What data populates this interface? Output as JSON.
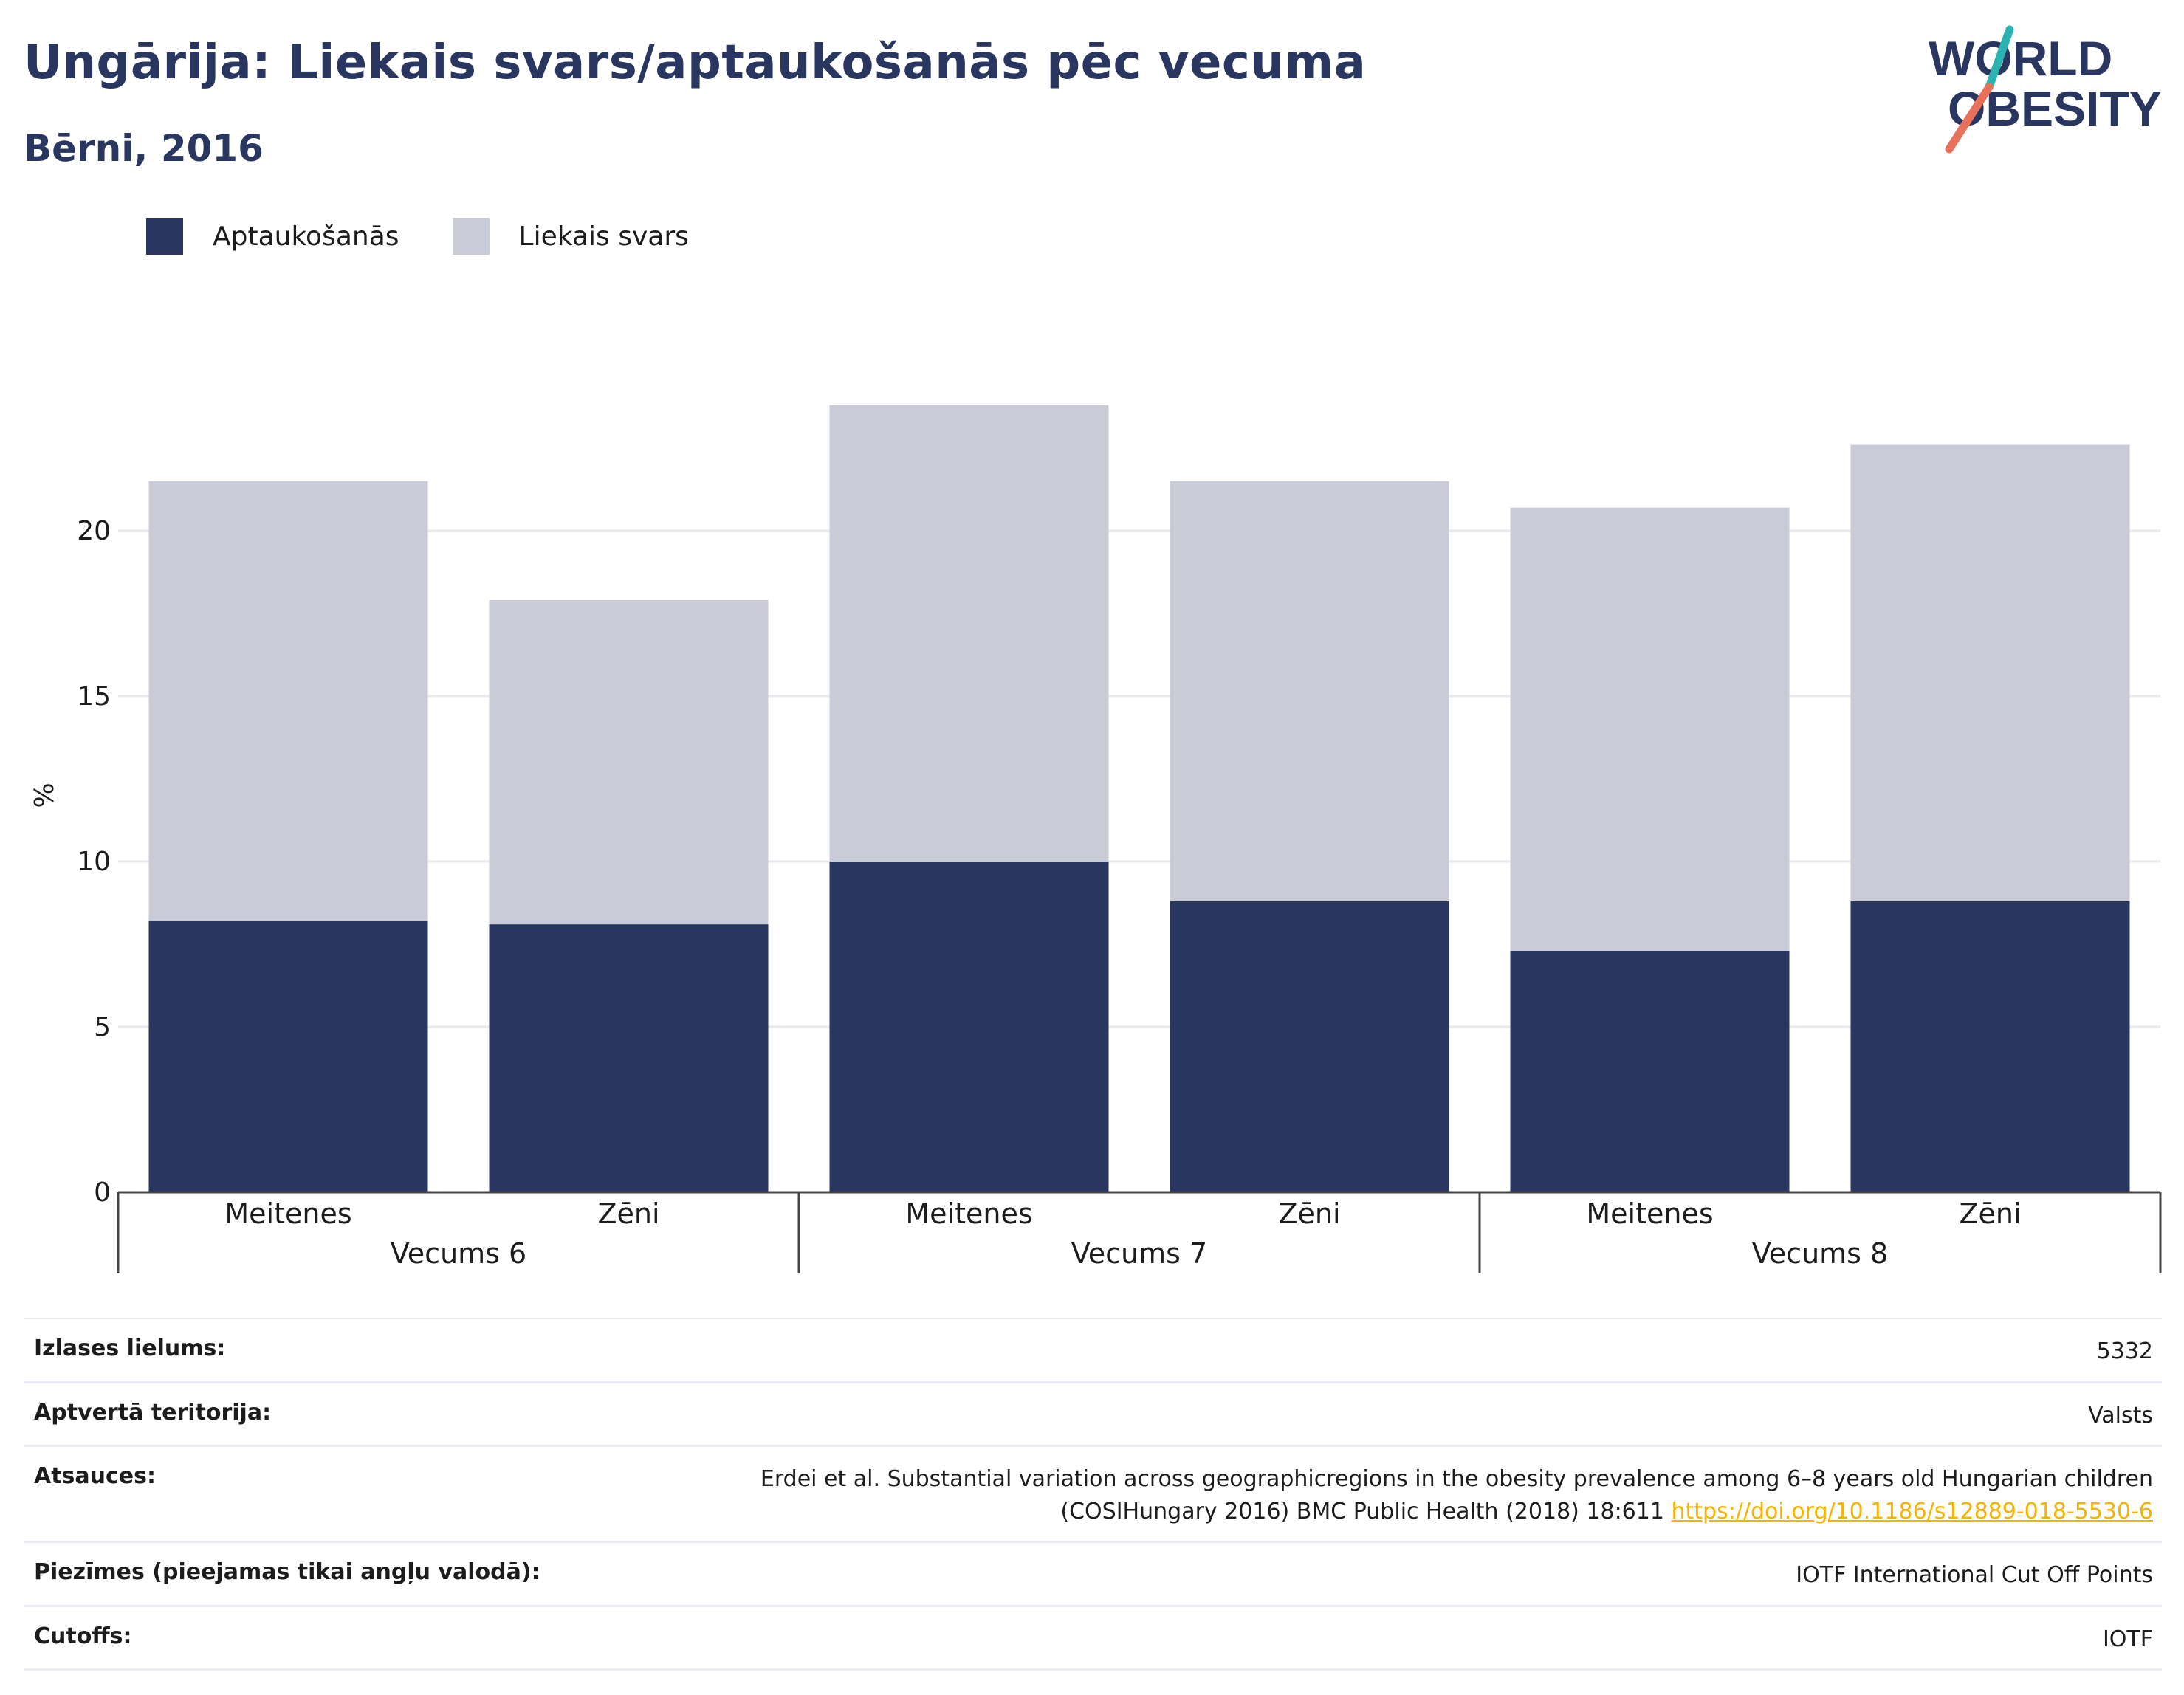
{
  "header": {
    "title": "Ungārija: Liekais svars/aptaukošanās pēc vecuma",
    "subtitle": "Bērni, 2016"
  },
  "logo": {
    "line1": "WORLD",
    "line2": "OBESITY"
  },
  "legend": {
    "obesity_label": "Aptaukošanās",
    "overweight_label": "Liekais svars"
  },
  "colors": {
    "obesity": "#29365f",
    "overweight": "#c9cbd7",
    "grid": "#e9e9ee",
    "logo_teal": "#2bb3b1",
    "logo_coral": "#e8715b"
  },
  "chart_data": {
    "type": "bar",
    "stacked": true,
    "ylabel": "%",
    "ylim": [
      0,
      25
    ],
    "yticks": [
      0,
      5,
      10,
      15,
      20
    ],
    "grid": true,
    "legend_position": "top-left",
    "groups": [
      "Vecums 6",
      "Vecums 7",
      "Vecums 8"
    ],
    "categories": [
      "Meitenes",
      "Zēni",
      "Meitenes",
      "Zēni",
      "Meitenes",
      "Zēni"
    ],
    "series": [
      {
        "name": "Aptaukošanās",
        "values": [
          8.2,
          8.1,
          10.0,
          8.8,
          7.3,
          8.8
        ]
      },
      {
        "name": "Liekais svars",
        "values": [
          13.3,
          9.8,
          13.8,
          12.7,
          13.4,
          13.8
        ]
      }
    ]
  },
  "info": {
    "rows": [
      {
        "label": "Izlases lielums:",
        "value": "5332"
      },
      {
        "label": "Aptvertā teritorija:",
        "value": "Valsts"
      },
      {
        "label": "Atsauces:",
        "value": "Erdei et al. Substantial variation across geographicregions in the obesity prevalence among 6–8 years old Hungarian children",
        "value2": "(COSIHungary 2016) BMC Public Health (2018) 18:611 ",
        "link": "https://doi.org/10.1186/s12889-018-5530-6"
      },
      {
        "label": "Piezīmes (pieejamas tikai angļu valodā):",
        "value": "IOTF International Cut Off Points"
      },
      {
        "label": "Cutoffs:",
        "value": "IOTF"
      }
    ]
  }
}
